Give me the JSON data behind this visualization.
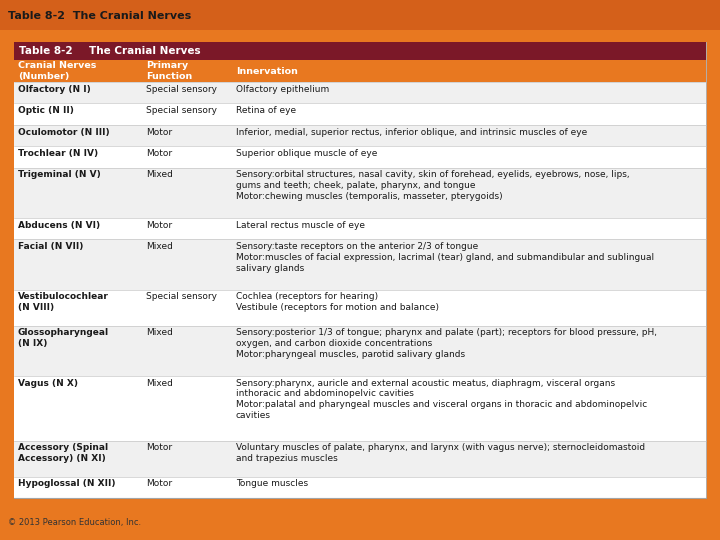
{
  "page_title": "Table 8-2  The Cranial Nerves",
  "table_title": "Table 8-2",
  "table_subtitle": "The Cranial Nerves",
  "header_bg": "#7B1828",
  "subheader_bg": "#E87820",
  "page_bg": "#E87820",
  "odd_row_bg": "#F0F0F0",
  "even_row_bg": "#FFFFFF",
  "body_text_color": "#1A1A1A",
  "copyright": "© 2013 Pearson Education, Inc.",
  "rows": [
    {
      "nerve": "Olfactory (N I)",
      "function": "Special sensory",
      "innervation": "Olfactory epithelium"
    },
    {
      "nerve": "Optic (N II)",
      "function": "Special sensory",
      "innervation": "Retina of eye"
    },
    {
      "nerve": "Oculomotor (N III)",
      "function": "Motor",
      "innervation": "Inferior, medial, superior rectus, inferior oblique, and intrinsic muscles of eye"
    },
    {
      "nerve": "Trochlear (N IV)",
      "function": "Motor",
      "innervation": "Superior oblique muscle of eye"
    },
    {
      "nerve": "Trigeminal (N V)",
      "function": "Mixed",
      "innervation": "Sensory:orbital structures, nasal cavity, skin of forehead, eyelids, eyebrows, nose, lips,\ngums and teeth; cheek, palate, pharynx, and tongue\nMotor:chewing muscles (temporalis, masseter, pterygoids)"
    },
    {
      "nerve": "Abducens (N VI)",
      "function": "Motor",
      "innervation": "Lateral rectus muscle of eye"
    },
    {
      "nerve": "Facial (N VII)",
      "function": "Mixed",
      "innervation": "Sensory:taste receptors on the anterior 2/3 of tongue\nMotor:muscles of facial expression, lacrimal (tear) gland, and submandibular and sublingual\nsalivary glands"
    },
    {
      "nerve": "Vestibulocochlear\n(N VIII)",
      "function": "Special sensory",
      "innervation": "Cochlea (receptors for hearing)\nVestibule (receptors for motion and balance)"
    },
    {
      "nerve": "Glossopharyngeal\n(N IX)",
      "function": "Mixed",
      "innervation": "Sensory:posterior 1/3 of tongue; pharynx and palate (part); receptors for blood pressure, pH,\noxygen, and carbon dioxide concentrations\nMotor:pharyngeal muscles, parotid salivary glands"
    },
    {
      "nerve": "Vagus (N X)",
      "function": "Mixed",
      "innervation": "Sensory:pharynx, auricle and external acoustic meatus, diaphragm, visceral organs\ninthoracic and abdominopelvic cavities\nMotor:palatal and pharyngeal muscles and visceral organs in thoracic and abdominopelvic\ncavities"
    },
    {
      "nerve": "Accessory (Spinal\nAccessory) (N XI)",
      "function": "Motor",
      "innervation": "Voluntary muscles of palate, pharynx, and larynx (with vagus nerve); sternocleidomastoid\nand trapezius muscles"
    },
    {
      "nerve": "Hypoglossal (N XII)",
      "function": "Motor",
      "innervation": "Tongue muscles"
    }
  ]
}
